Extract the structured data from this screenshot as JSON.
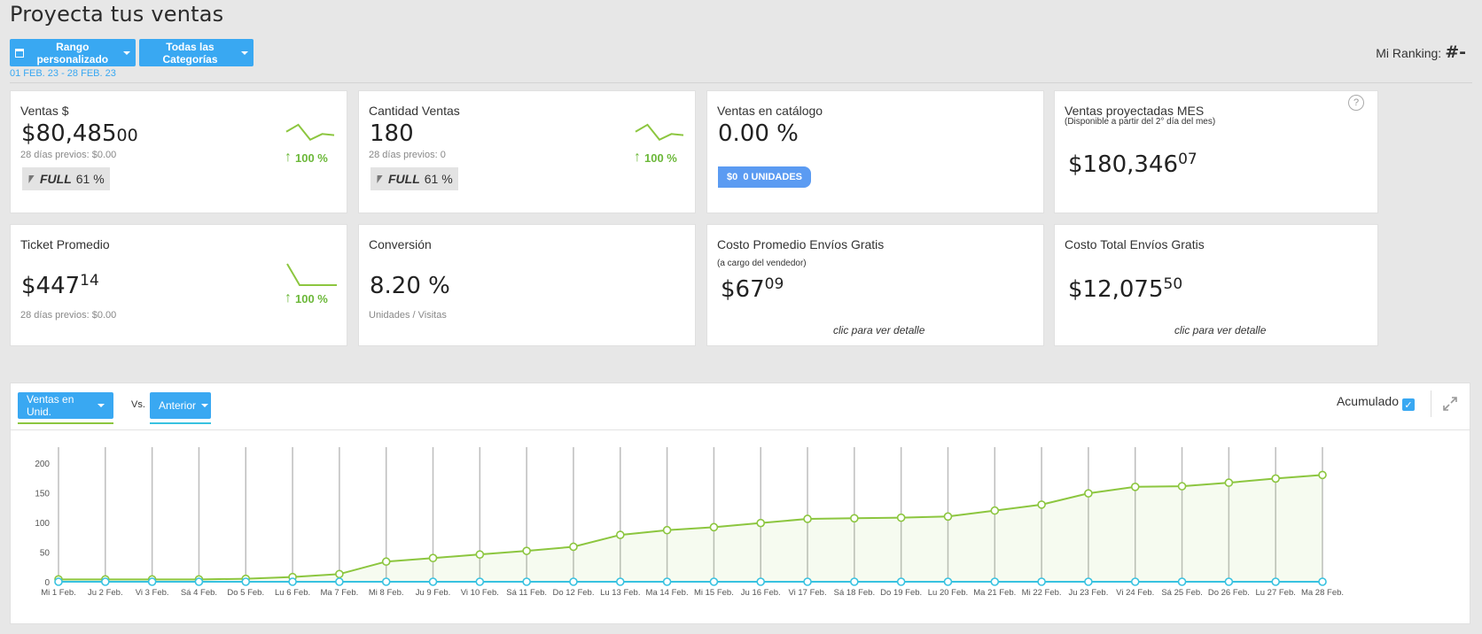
{
  "header": {
    "title": "Proyecta tus ventas",
    "range_button": "Rango personalizado",
    "category_button": "Todas las Categorías",
    "date_range": "01 FEB. 23 - 28 FEB. 23",
    "ranking_label": "Mi Ranking:",
    "ranking_value": "#-"
  },
  "cards": {
    "ventas": {
      "title": "Ventas $",
      "int": "$80,485",
      "frac": "00",
      "prev": "28 días previos: $0.00",
      "full_label": "FULL",
      "full_pct": "61 %",
      "change": "100 %"
    },
    "cantidad": {
      "title": "Cantidad Ventas",
      "value": "180",
      "prev": "28 días previos: 0",
      "full_label": "FULL",
      "full_pct": "61 %",
      "change": "100 %"
    },
    "catalogo": {
      "title": "Ventas en catálogo",
      "value": "0.00 %",
      "badge_amount": "$0",
      "badge_units": "0 UNIDADES"
    },
    "proyectadas": {
      "title": "Ventas proyectadas MES",
      "subtitle": "(Disponible a partir del 2° día del mes)",
      "int": "$180,346",
      "frac": "07",
      "help": "?"
    },
    "ticket": {
      "title": "Ticket Promedio",
      "int": "$447",
      "frac": "14",
      "prev": "28 días previos: $0.00",
      "change": "100 %"
    },
    "conversion": {
      "title": "Conversión",
      "value": "8.20 %",
      "sub": "Unidades / Visitas"
    },
    "costo_promedio": {
      "title": "Costo Promedio Envíos Gratis",
      "subtitle": "(a cargo del vendedor)",
      "int": "$67",
      "frac": "09",
      "link": "clic para ver detalle"
    },
    "costo_total": {
      "title": "Costo Total Envíos Gratis",
      "int": "$12,075",
      "frac": "50",
      "link": "clic para ver detalle"
    }
  },
  "chart_panel": {
    "metric_button": "Ventas en Unid.",
    "vs_label": "Vs.",
    "compare_button": "Anterior",
    "acumulado_label": "Acumulado",
    "acumulado_checked": true
  },
  "colors": {
    "primary": "#39a8f2",
    "current_series": "#8cc63f",
    "previous_series": "#38c2e0",
    "badge": "#5b9bf2"
  },
  "chart_data": {
    "type": "line",
    "categories": [
      "Mi 1 Feb.",
      "Ju 2 Feb.",
      "Vi 3 Feb.",
      "Sá 4 Feb.",
      "Do 5 Feb.",
      "Lu 6 Feb.",
      "Ma 7 Feb.",
      "Mi 8 Feb.",
      "Ju 9 Feb.",
      "Vi 10 Feb.",
      "Sá 11 Feb.",
      "Do 12 Feb.",
      "Lu 13 Feb.",
      "Ma 14 Feb.",
      "Mi 15 Feb.",
      "Ju 16 Feb.",
      "Vi 17 Feb.",
      "Sá 18 Feb.",
      "Do 19 Feb.",
      "Lu 20 Feb.",
      "Ma 21 Feb.",
      "Mi 22 Feb.",
      "Ju 23 Feb.",
      "Vi 24 Feb.",
      "Sá 25 Feb.",
      "Do 26 Feb.",
      "Lu 27 Feb.",
      "Ma 28 Feb."
    ],
    "series": [
      {
        "values": [
          4,
          4,
          4,
          4,
          5,
          8,
          13,
          34,
          40,
          46,
          52,
          59,
          79,
          87,
          92,
          99,
          106,
          107,
          108,
          110,
          120,
          130,
          149,
          160,
          161,
          167,
          174,
          180
        ]
      },
      {
        "values": [
          0,
          0,
          0,
          0,
          0,
          0,
          0,
          0,
          0,
          0,
          0,
          0,
          0,
          0,
          0,
          0,
          0,
          0,
          0,
          0,
          0,
          0,
          0,
          0,
          0,
          0,
          0,
          0
        ]
      }
    ],
    "yticks": [
      0,
      50,
      100,
      150,
      200
    ],
    "ylim": [
      0,
      200
    ],
    "grid": "vertical",
    "legend": "none"
  },
  "sparklines": {
    "ventas": [
      0.55,
      0.85,
      0.2,
      0.45,
      0.4
    ],
    "cantidad": [
      0.55,
      0.85,
      0.2,
      0.45,
      0.4
    ],
    "ticket": [
      1,
      0,
      0,
      0,
      0
    ]
  }
}
